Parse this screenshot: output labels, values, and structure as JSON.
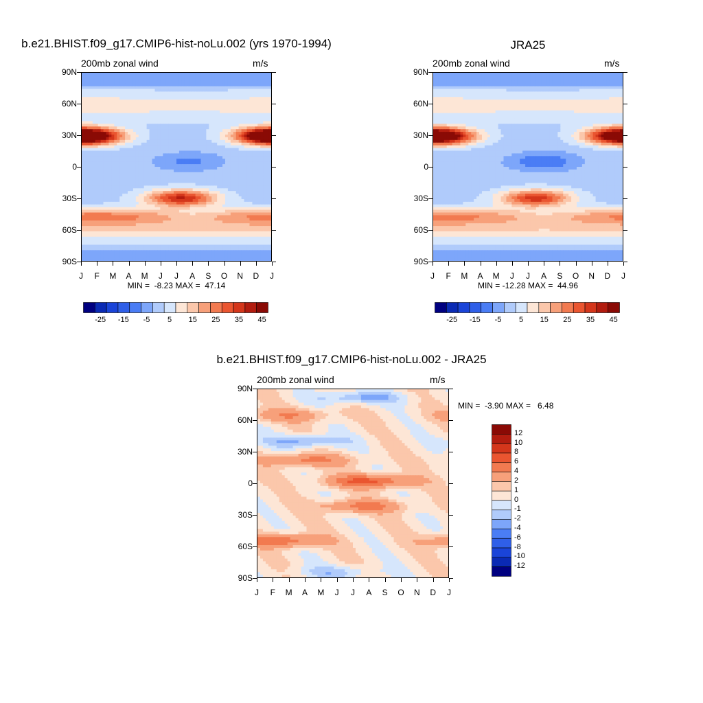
{
  "colors": {
    "frame": "#000000",
    "background": "#ffffff"
  },
  "chart_data": [
    {
      "type": "heatmap",
      "title": "b.e21.BHIST.f09_g17.CMIP6-hist-noLu.002 (yrs 1970-1994)",
      "left_label": "200mb zonal wind",
      "right_label": "m/s",
      "x_tick_labels": [
        "J",
        "F",
        "M",
        "A",
        "M",
        "J",
        "J",
        "A",
        "S",
        "O",
        "N",
        "D",
        "J"
      ],
      "y_tick_labels": [
        "90N",
        "60N",
        "30N",
        "0",
        "30S",
        "60S",
        "90S"
      ],
      "ylim": [
        -90,
        90
      ],
      "min_max_text": "MIN =  -8.23 MAX =  47.14",
      "min": -8.23,
      "max": 47.14,
      "colorbar": {
        "orientation": "horizontal",
        "levels": [
          -30,
          -25,
          -20,
          -15,
          -10,
          -5,
          0,
          5,
          10,
          15,
          20,
          25,
          30,
          35,
          40,
          45
        ],
        "labels": [
          "-25",
          "-15",
          "-5",
          "5",
          "15",
          "25",
          "35",
          "45"
        ],
        "colors": [
          "#000080",
          "#0a2ab4",
          "#1a44d8",
          "#2f5fe8",
          "#4a7df5",
          "#7da6fa",
          "#b0cbfb",
          "#d6e6fc",
          "#fde6d6",
          "#fbc7ab",
          "#f7a07a",
          "#f27a50",
          "#ea5530",
          "#d4361b",
          "#b21c0f",
          "#8a0a05"
        ]
      },
      "features": [
        {
          "name": "NH subtropical jet (winter)",
          "month": 0.4,
          "lat": 29,
          "value": 46
        },
        {
          "name": "NH subtropical jet (Dec)",
          "month": 11.8,
          "lat": 30,
          "value": 44
        },
        {
          "name": "SH subtropical jet",
          "month": 6.3,
          "lat": -30,
          "value": 47
        },
        {
          "name": "SH midlatitude jet",
          "month": 1.0,
          "lat": -48,
          "value": 32
        },
        {
          "name": "Tropical easterlies (NH summer)",
          "month": 6.8,
          "lat": 5,
          "value": -8
        },
        {
          "name": "NH high-latitude westerlies",
          "month": 0.5,
          "lat": 60,
          "value": 13
        },
        {
          "name": "Polar easterlies",
          "month": 7.0,
          "lat": 85,
          "value": -3
        }
      ]
    },
    {
      "type": "heatmap",
      "title": "JRA25",
      "left_label": "200mb zonal wind",
      "right_label": "m/s",
      "x_tick_labels": [
        "J",
        "F",
        "M",
        "A",
        "M",
        "J",
        "J",
        "A",
        "S",
        "O",
        "N",
        "D",
        "J"
      ],
      "y_tick_labels": [
        "90N",
        "60N",
        "30N",
        "0",
        "30S",
        "60S",
        "90S"
      ],
      "ylim": [
        -90,
        90
      ],
      "min_max_text": "MIN = -12.28 MAX =  44.96",
      "min": -12.28,
      "max": 44.96,
      "colorbar": {
        "orientation": "horizontal",
        "levels": [
          -30,
          -25,
          -20,
          -15,
          -10,
          -5,
          0,
          5,
          10,
          15,
          20,
          25,
          30,
          35,
          40,
          45
        ],
        "labels": [
          "-25",
          "-15",
          "-5",
          "5",
          "15",
          "25",
          "35",
          "45"
        ],
        "colors": [
          "#000080",
          "#0a2ab4",
          "#1a44d8",
          "#2f5fe8",
          "#4a7df5",
          "#7da6fa",
          "#b0cbfb",
          "#d6e6fc",
          "#fde6d6",
          "#fbc7ab",
          "#f7a07a",
          "#f27a50",
          "#ea5530",
          "#d4361b",
          "#b21c0f",
          "#8a0a05"
        ]
      },
      "features": [
        {
          "name": "NH subtropical jet (winter)",
          "month": 0.5,
          "lat": 29,
          "value": 43
        },
        {
          "name": "NH subtropical jet (Dec)",
          "month": 11.8,
          "lat": 30,
          "value": 42
        },
        {
          "name": "SH subtropical jet",
          "month": 6.5,
          "lat": -30,
          "value": 44
        },
        {
          "name": "SH midlatitude jet",
          "month": 1.0,
          "lat": -48,
          "value": 30
        },
        {
          "name": "Tropical easterlies (NH summer)",
          "month": 7.0,
          "lat": 5,
          "value": -12
        },
        {
          "name": "NH high-latitude westerlies",
          "month": 0.5,
          "lat": 60,
          "value": 12
        },
        {
          "name": "Polar easterlies",
          "month": 7.0,
          "lat": 85,
          "value": -3
        }
      ]
    },
    {
      "type": "heatmap",
      "title": "b.e21.BHIST.f09_g17.CMIP6-hist-noLu.002 - JRA25",
      "left_label": "200mb zonal wind",
      "right_label": "m/s",
      "x_tick_labels": [
        "J",
        "F",
        "M",
        "A",
        "M",
        "J",
        "J",
        "A",
        "S",
        "O",
        "N",
        "D",
        "J"
      ],
      "y_tick_labels": [
        "90N",
        "60N",
        "30N",
        "0",
        "30S",
        "60S",
        "90S"
      ],
      "ylim": [
        -90,
        90
      ],
      "min_max_text": "MIN =  -3.90 MAX =   6.48",
      "min": -3.9,
      "max": 6.48,
      "colorbar": {
        "orientation": "vertical",
        "levels": [
          -14,
          -12,
          -10,
          -8,
          -6,
          -4,
          -2,
          -1,
          0,
          1,
          2,
          4,
          6,
          8,
          10,
          12,
          14
        ],
        "labels": [
          "12",
          "10",
          "8",
          "6",
          "4",
          "2",
          "1",
          "0",
          "-1",
          "-2",
          "-4",
          "-6",
          "-8",
          "-10",
          "-12"
        ],
        "colors": [
          "#000080",
          "#0a2ab4",
          "#1a44d8",
          "#2f5fe8",
          "#4a7df5",
          "#7da6fa",
          "#b0cbfb",
          "#d6e6fc",
          "#fde6d6",
          "#fbc7ab",
          "#f7a07a",
          "#f27a50",
          "#ea5530",
          "#d4361b",
          "#b21c0f",
          "#8a0a05"
        ]
      },
      "features": [
        {
          "name": "NH midlatitude positive",
          "month": 2.0,
          "lat": 65,
          "value": 3
        },
        {
          "name": "NH negative band",
          "month": 3.0,
          "lat": 40,
          "value": -3
        },
        {
          "name": "Subtropical positive",
          "month": 3.0,
          "lat": 22,
          "value": 4
        },
        {
          "name": "Equatorial positive",
          "month": 7.0,
          "lat": 2,
          "value": 6
        },
        {
          "name": "SH subtropical positive",
          "month": 6.5,
          "lat": -22,
          "value": 4
        },
        {
          "name": "SH midlatitude positive",
          "month": 1.5,
          "lat": -55,
          "value": 5
        },
        {
          "name": "Polar negative",
          "month": 6.5,
          "lat": 82,
          "value": -3
        },
        {
          "name": "SH polar negative",
          "month": 5.0,
          "lat": -85,
          "value": -2
        }
      ]
    }
  ]
}
